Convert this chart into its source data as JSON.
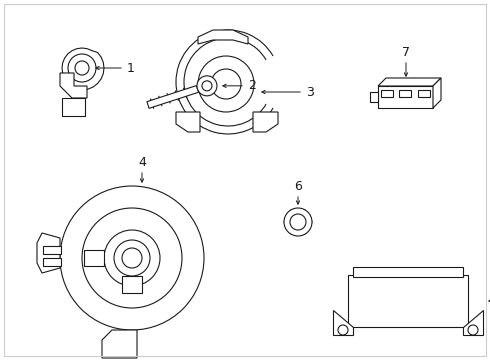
{
  "bg_color": "#ffffff",
  "line_color": "#1a1a1a",
  "lw": 0.8,
  "border_color": "#cccccc",
  "figw": 4.9,
  "figh": 3.6,
  "dpi": 100
}
